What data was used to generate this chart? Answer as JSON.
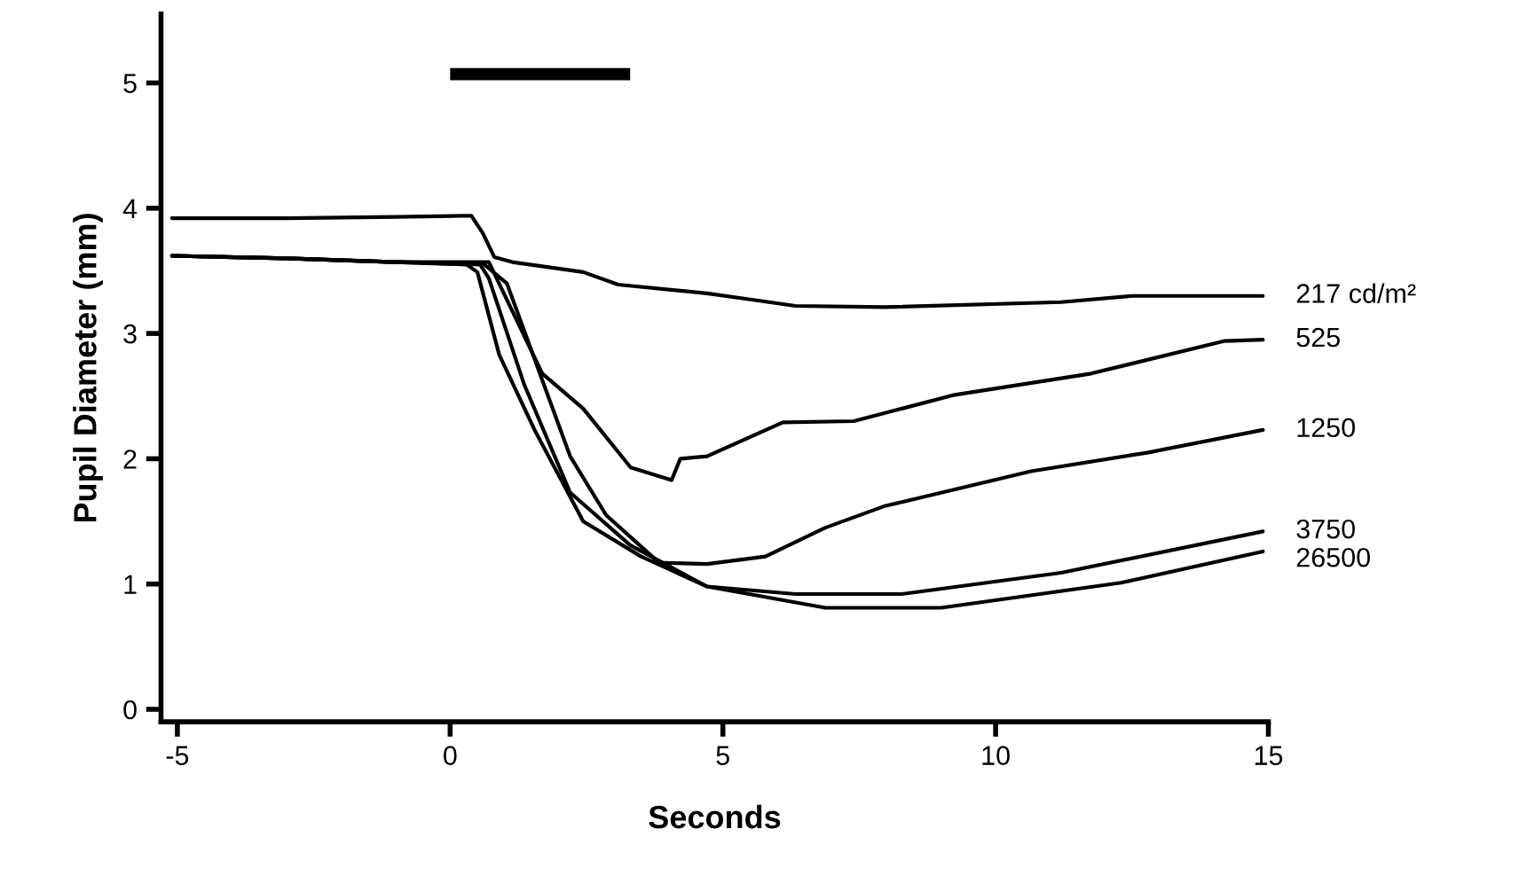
{
  "chart_data": {
    "type": "line",
    "xlabel": "Seconds",
    "ylabel": "Pupil Diameter (mm)",
    "xlim": [
      -5.3,
      15
    ],
    "ylim": [
      -0.1,
      5.55
    ],
    "xticks": [
      -5,
      0,
      5,
      10,
      15
    ],
    "yticks": [
      0,
      1,
      2,
      3,
      4,
      5
    ],
    "grid": false,
    "legend": false,
    "marker": "none",
    "line_style": "solid",
    "series": [
      {
        "name": "217 cd/m²",
        "color": "#000000",
        "x": [
          -5.1,
          -3,
          -1,
          0.39,
          0.6,
          0.81,
          1.14,
          2.44,
          3.08,
          4.71,
          5.36,
          6.33,
          7.95,
          11.2,
          12.5,
          14.9
        ],
        "values": [
          3.92,
          3.92,
          3.93,
          3.94,
          3.8,
          3.61,
          3.57,
          3.49,
          3.39,
          3.32,
          3.28,
          3.22,
          3.21,
          3.25,
          3.3,
          3.3
        ]
      },
      {
        "name": "525",
        "color": "#000000",
        "x": [
          -5.1,
          -3,
          -1,
          0.71,
          1.69,
          2.44,
          3.31,
          4.06,
          4.22,
          4.71,
          6.1,
          7.4,
          9.25,
          11.75,
          14.2,
          14.9
        ],
        "values": [
          3.62,
          3.6,
          3.57,
          3.57,
          2.68,
          2.4,
          1.93,
          1.83,
          2.0,
          2.02,
          2.29,
          2.3,
          2.51,
          2.68,
          2.94,
          2.95
        ]
      },
      {
        "name": "1250",
        "color": "#000000",
        "x": [
          -5.1,
          -3,
          -1,
          0.6,
          1.04,
          2.2,
          2.86,
          3.83,
          4.71,
          5.78,
          6.88,
          7.95,
          10.65,
          12.8,
          14.9
        ],
        "values": [
          3.62,
          3.6,
          3.57,
          3.56,
          3.4,
          2.02,
          1.55,
          1.17,
          1.16,
          1.22,
          1.45,
          1.62,
          1.9,
          2.05,
          2.23
        ]
      },
      {
        "name": "3750",
        "color": "#000000",
        "x": [
          -5.1,
          -3,
          -1,
          0.55,
          0.71,
          1.36,
          2.2,
          3.3,
          4.71,
          6.33,
          8.28,
          11.2,
          14.9
        ],
        "values": [
          3.62,
          3.6,
          3.57,
          3.55,
          3.44,
          2.59,
          1.73,
          1.31,
          0.98,
          0.92,
          0.92,
          1.09,
          1.42
        ]
      },
      {
        "name": "26500",
        "color": "#000000",
        "x": [
          -5.1,
          -3,
          -1,
          0.3,
          0.5,
          0.9,
          1.56,
          2.44,
          3.5,
          4.71,
          6.88,
          9.0,
          12.3,
          14.9
        ],
        "values": [
          3.62,
          3.6,
          3.57,
          3.55,
          3.49,
          2.83,
          2.22,
          1.5,
          1.22,
          0.98,
          0.81,
          0.81,
          1.01,
          1.26
        ]
      },
      {
        "color": "#000000",
        "x": [
          0,
          3.3
        ],
        "values": [
          5.07,
          5.07
        ]
      }
    ]
  }
}
